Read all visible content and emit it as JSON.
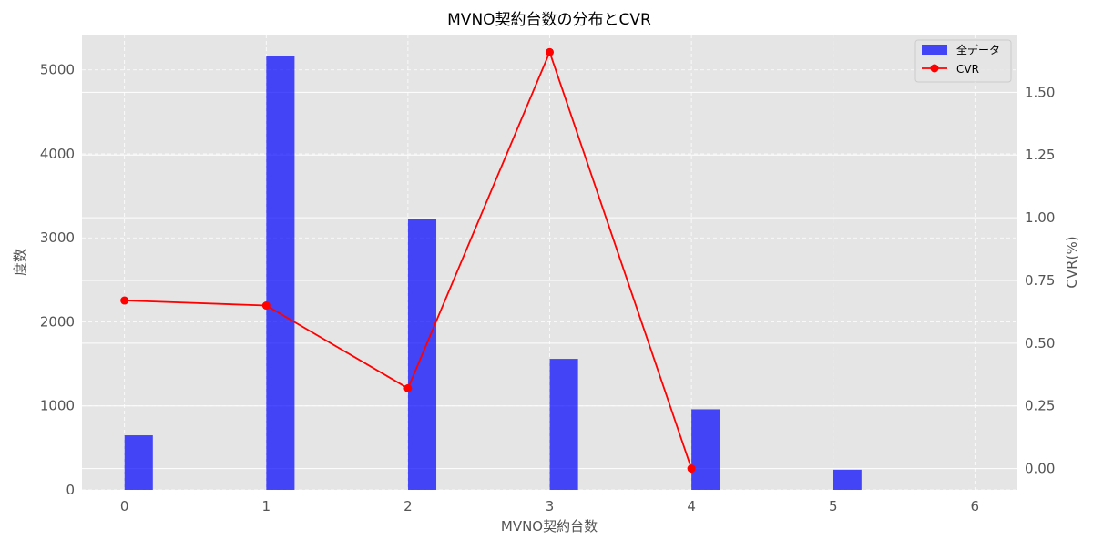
{
  "chart_data": {
    "type": "bar",
    "title": "MVNO契約台数の分布とCVR",
    "xlabel": "MVNO契約台数",
    "ylabel_left": "度数",
    "ylabel_right": "CVR(%)",
    "x_ticks": [
      "0",
      "1",
      "2",
      "3",
      "4",
      "5",
      "6"
    ],
    "y_left_ticks": [
      "0",
      "1000",
      "2000",
      "3000",
      "4000",
      "5000"
    ],
    "y_right_ticks": [
      "0.00",
      "0.25",
      "0.50",
      "0.75",
      "1.00",
      "1.25",
      "1.50"
    ],
    "xlim": [
      -0.3,
      6.3
    ],
    "ylim_left": [
      0,
      5420
    ],
    "ylim_right": [
      -0.085,
      1.73
    ],
    "grid": true,
    "legend_position": "top-right",
    "series": [
      {
        "name": "全データ",
        "type": "bar",
        "axis": "left",
        "color": "#0000ff",
        "x": [
          0,
          1,
          2,
          3,
          4,
          5
        ],
        "values": [
          650,
          5160,
          3220,
          1560,
          960,
          240
        ]
      },
      {
        "name": "CVR",
        "type": "line",
        "axis": "right",
        "color": "#ff0000",
        "x": [
          0,
          1,
          2,
          3,
          4
        ],
        "values": [
          0.67,
          0.65,
          0.32,
          1.66,
          0.0
        ]
      }
    ]
  }
}
